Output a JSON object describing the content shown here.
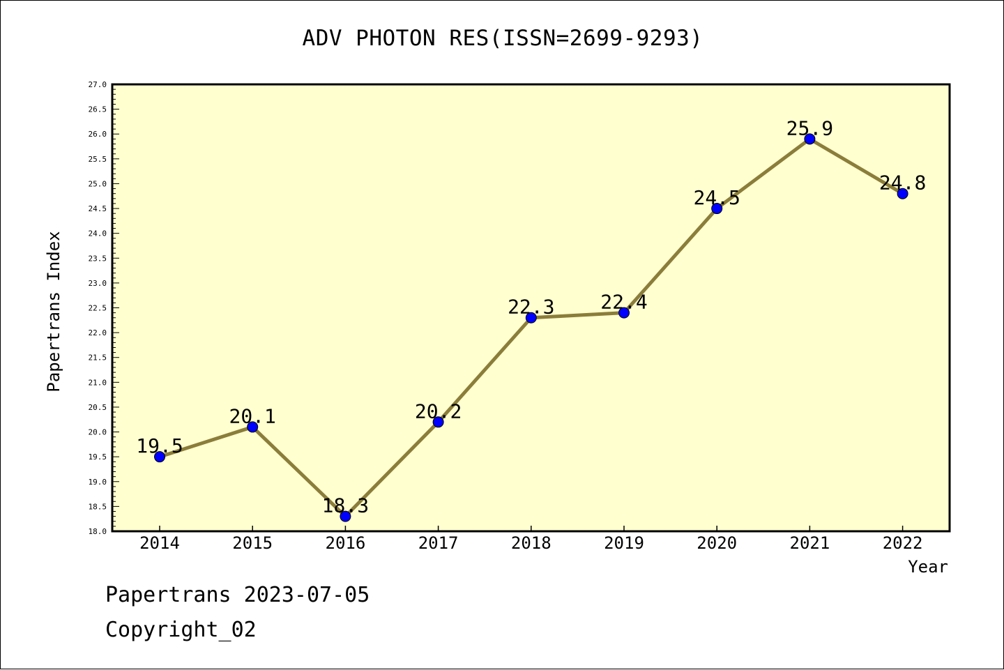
{
  "chart_data": {
    "type": "line",
    "title": "ADV PHOTON RES(ISSN=2699-9293)",
    "xlabel": "Year",
    "ylabel": "Papertrans Index",
    "categories": [
      "2014",
      "2015",
      "2016",
      "2017",
      "2018",
      "2019",
      "2020",
      "2021",
      "2022"
    ],
    "series": [
      {
        "values": [
          19.5,
          20.1,
          18.3,
          20.2,
          22.3,
          22.4,
          24.5,
          25.9,
          24.8
        ]
      }
    ],
    "data_labels": [
      "19.5",
      "20.1",
      "18.3",
      "20.2",
      "22.3",
      "22.4",
      "24.5",
      "25.9",
      "24.8"
    ],
    "ylim": [
      18.0,
      27.0
    ],
    "yticks": [
      "18.0",
      "18.5",
      "19.0",
      "19.5",
      "20.0",
      "20.5",
      "21.0",
      "21.5",
      "22.0",
      "22.5",
      "23.0",
      "23.5",
      "24.0",
      "24.5",
      "25.0",
      "25.5",
      "26.0",
      "26.5",
      "27.0"
    ],
    "grid": false,
    "colors": {
      "plot_background": "#ffffd0",
      "line": "#8b7d3a",
      "marker": "#0000ff"
    }
  },
  "footer": {
    "line1": "Papertrans 2023-07-05",
    "line2": "Copyright_02"
  }
}
